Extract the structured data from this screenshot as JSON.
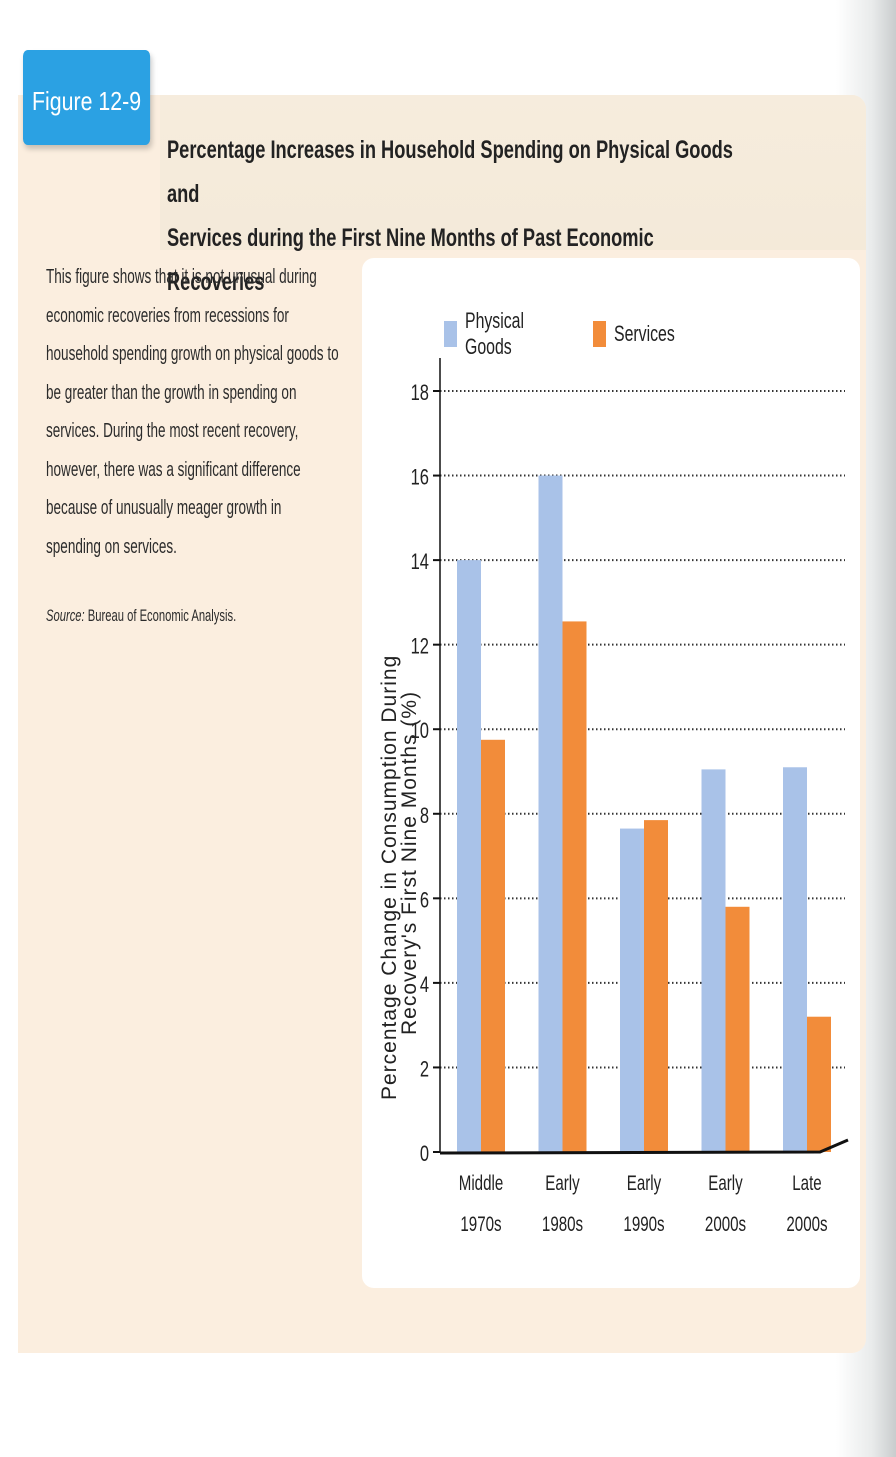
{
  "figure": {
    "badge": "Figure 12-9",
    "title_line1": "Percentage Increases in Household Spending on Physical Goods and",
    "title_line2": "Services during the First Nine Months of Past Economic Recoveries",
    "description": "This figure shows that it is not unusual during economic recoveries from recessions for household spending growth on physical goods to be greater than the growth in spending on services. During the most recent recovery, however, there was a significant difference because of unusually meager growth in spending on services.",
    "source_label": "Source:",
    "source_text": "Bureau of Economic Analysis."
  },
  "colors": {
    "badge": "#2ba1e3",
    "physical_goods": "#a9c2e8",
    "services": "#f28c3a",
    "panel": "#fbeedf"
  },
  "chart_data": {
    "type": "bar",
    "title": "Percentage Increases in Household Spending on Physical Goods and Services during the First Nine Months of Past Economic Recoveries",
    "xlabel": "",
    "ylabel": "Percentage Change in Consumption During Recovery's First Nine Months (%)",
    "ylabel_line1": "Percentage Change in Consumption During",
    "ylabel_line2": "Recovery's First Nine Months (%)",
    "categories": [
      "Middle 1970s",
      "Early 1980s",
      "Early 1990s",
      "Early 2000s",
      "Late 2000s"
    ],
    "category_lines": [
      [
        "Middle",
        "1970s"
      ],
      [
        "Early",
        "1980s"
      ],
      [
        "Early",
        "1990s"
      ],
      [
        "Early",
        "2000s"
      ],
      [
        "Late",
        "2000s"
      ]
    ],
    "series": [
      {
        "name": "Physical Goods",
        "color": "#a9c2e8",
        "values": [
          14.0,
          16.0,
          7.65,
          9.05,
          9.1
        ]
      },
      {
        "name": "Services",
        "color": "#f28c3a",
        "values": [
          9.75,
          12.55,
          7.85,
          5.8,
          3.2
        ]
      }
    ],
    "ylim": [
      0,
      18
    ],
    "yticks": [
      0,
      2,
      4,
      6,
      8,
      10,
      12,
      14,
      16,
      18
    ],
    "grid": "horizontal dotted",
    "legend_position": "top"
  }
}
